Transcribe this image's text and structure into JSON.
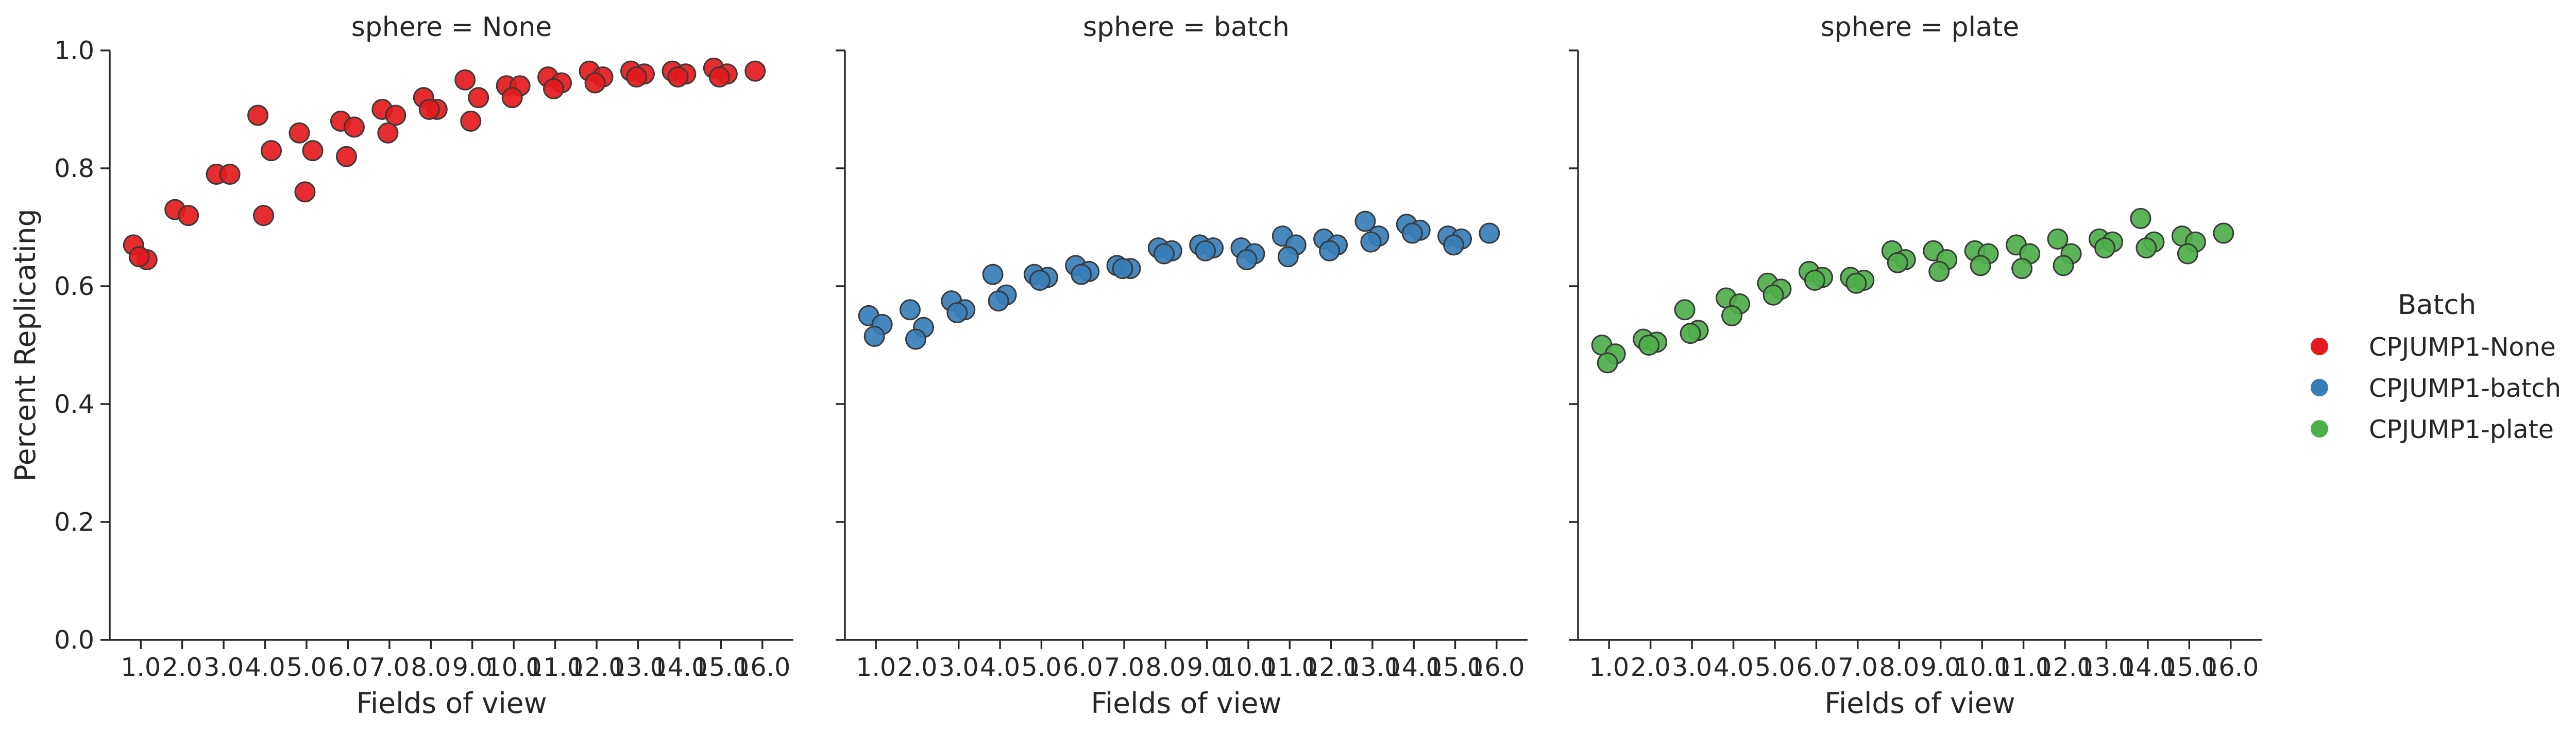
{
  "legend": {
    "title": "Batch",
    "entries": [
      {
        "label": "CPJUMP1-None",
        "color": "#e41a1c"
      },
      {
        "label": "CPJUMP1-batch",
        "color": "#377eb8"
      },
      {
        "label": "CPJUMP1-plate",
        "color": "#4daf4a"
      }
    ]
  },
  "chart_data": [
    {
      "type": "scatter",
      "title": "sphere = None",
      "xlabel": "Fields of view",
      "ylabel": "Percent Replicating",
      "ylim": [
        0,
        1.0
      ],
      "yticks": [
        "0.0",
        "0.2",
        "0.4",
        "0.6",
        "0.8",
        "1.0"
      ],
      "categories": [
        "1.0",
        "2.0",
        "3.0",
        "4.0",
        "5.0",
        "6.0",
        "7.0",
        "8.0",
        "9.0",
        "10.0",
        "11.0",
        "12.0",
        "13.0",
        "14.0",
        "15.0",
        "16.0"
      ],
      "series": [
        {
          "name": "CPJUMP1-None",
          "color": "#e41a1c",
          "points": [
            {
              "x": "1.0",
              "y": 0.67
            },
            {
              "x": "1.0",
              "y": 0.645
            },
            {
              "x": "1.0",
              "y": 0.65
            },
            {
              "x": "2.0",
              "y": 0.73
            },
            {
              "x": "2.0",
              "y": 0.72
            },
            {
              "x": "3.0",
              "y": 0.79
            },
            {
              "x": "3.0",
              "y": 0.79
            },
            {
              "x": "4.0",
              "y": 0.89
            },
            {
              "x": "4.0",
              "y": 0.83
            },
            {
              "x": "4.0",
              "y": 0.72
            },
            {
              "x": "5.0",
              "y": 0.86
            },
            {
              "x": "5.0",
              "y": 0.83
            },
            {
              "x": "5.0",
              "y": 0.76
            },
            {
              "x": "6.0",
              "y": 0.88
            },
            {
              "x": "6.0",
              "y": 0.87
            },
            {
              "x": "6.0",
              "y": 0.82
            },
            {
              "x": "7.0",
              "y": 0.9
            },
            {
              "x": "7.0",
              "y": 0.89
            },
            {
              "x": "7.0",
              "y": 0.86
            },
            {
              "x": "8.0",
              "y": 0.92
            },
            {
              "x": "8.0",
              "y": 0.9
            },
            {
              "x": "8.0",
              "y": 0.9
            },
            {
              "x": "9.0",
              "y": 0.95
            },
            {
              "x": "9.0",
              "y": 0.92
            },
            {
              "x": "9.0",
              "y": 0.88
            },
            {
              "x": "10.0",
              "y": 0.94
            },
            {
              "x": "10.0",
              "y": 0.94
            },
            {
              "x": "10.0",
              "y": 0.92
            },
            {
              "x": "11.0",
              "y": 0.955
            },
            {
              "x": "11.0",
              "y": 0.945
            },
            {
              "x": "11.0",
              "y": 0.935
            },
            {
              "x": "12.0",
              "y": 0.965
            },
            {
              "x": "12.0",
              "y": 0.955
            },
            {
              "x": "12.0",
              "y": 0.945
            },
            {
              "x": "13.0",
              "y": 0.965
            },
            {
              "x": "13.0",
              "y": 0.96
            },
            {
              "x": "13.0",
              "y": 0.955
            },
            {
              "x": "14.0",
              "y": 0.965
            },
            {
              "x": "14.0",
              "y": 0.96
            },
            {
              "x": "14.0",
              "y": 0.955
            },
            {
              "x": "15.0",
              "y": 0.97
            },
            {
              "x": "15.0",
              "y": 0.96
            },
            {
              "x": "15.0",
              "y": 0.955
            },
            {
              "x": "16.0",
              "y": 0.965
            }
          ]
        }
      ]
    },
    {
      "type": "scatter",
      "title": "sphere = batch",
      "xlabel": "Fields of view",
      "ylabel": "",
      "ylim": [
        0,
        1.0
      ],
      "categories": [
        "1.0",
        "2.0",
        "3.0",
        "4.0",
        "5.0",
        "6.0",
        "7.0",
        "8.0",
        "9.0",
        "10.0",
        "11.0",
        "12.0",
        "13.0",
        "14.0",
        "15.0",
        "16.0"
      ],
      "series": [
        {
          "name": "CPJUMP1-batch",
          "color": "#377eb8",
          "points": [
            {
              "x": "1.0",
              "y": 0.55
            },
            {
              "x": "1.0",
              "y": 0.535
            },
            {
              "x": "1.0",
              "y": 0.515
            },
            {
              "x": "2.0",
              "y": 0.56
            },
            {
              "x": "2.0",
              "y": 0.53
            },
            {
              "x": "2.0",
              "y": 0.51
            },
            {
              "x": "3.0",
              "y": 0.575
            },
            {
              "x": "3.0",
              "y": 0.56
            },
            {
              "x": "3.0",
              "y": 0.555
            },
            {
              "x": "4.0",
              "y": 0.62
            },
            {
              "x": "4.0",
              "y": 0.585
            },
            {
              "x": "4.0",
              "y": 0.575
            },
            {
              "x": "5.0",
              "y": 0.62
            },
            {
              "x": "5.0",
              "y": 0.615
            },
            {
              "x": "5.0",
              "y": 0.61
            },
            {
              "x": "6.0",
              "y": 0.635
            },
            {
              "x": "6.0",
              "y": 0.625
            },
            {
              "x": "6.0",
              "y": 0.62
            },
            {
              "x": "7.0",
              "y": 0.635
            },
            {
              "x": "7.0",
              "y": 0.63
            },
            {
              "x": "7.0",
              "y": 0.63
            },
            {
              "x": "8.0",
              "y": 0.665
            },
            {
              "x": "8.0",
              "y": 0.66
            },
            {
              "x": "8.0",
              "y": 0.655
            },
            {
              "x": "9.0",
              "y": 0.67
            },
            {
              "x": "9.0",
              "y": 0.665
            },
            {
              "x": "9.0",
              "y": 0.66
            },
            {
              "x": "10.0",
              "y": 0.665
            },
            {
              "x": "10.0",
              "y": 0.655
            },
            {
              "x": "10.0",
              "y": 0.645
            },
            {
              "x": "11.0",
              "y": 0.685
            },
            {
              "x": "11.0",
              "y": 0.67
            },
            {
              "x": "11.0",
              "y": 0.65
            },
            {
              "x": "12.0",
              "y": 0.68
            },
            {
              "x": "12.0",
              "y": 0.67
            },
            {
              "x": "12.0",
              "y": 0.66
            },
            {
              "x": "13.0",
              "y": 0.71
            },
            {
              "x": "13.0",
              "y": 0.685
            },
            {
              "x": "13.0",
              "y": 0.675
            },
            {
              "x": "14.0",
              "y": 0.705
            },
            {
              "x": "14.0",
              "y": 0.695
            },
            {
              "x": "14.0",
              "y": 0.69
            },
            {
              "x": "15.0",
              "y": 0.685
            },
            {
              "x": "15.0",
              "y": 0.68
            },
            {
              "x": "15.0",
              "y": 0.67
            },
            {
              "x": "16.0",
              "y": 0.69
            }
          ]
        }
      ]
    },
    {
      "type": "scatter",
      "title": "sphere = plate",
      "xlabel": "Fields of view",
      "ylabel": "",
      "ylim": [
        0,
        1.0
      ],
      "categories": [
        "1.0",
        "2.0",
        "3.0",
        "4.0",
        "5.0",
        "6.0",
        "7.0",
        "8.0",
        "9.0",
        "10.0",
        "11.0",
        "12.0",
        "13.0",
        "14.0",
        "15.0",
        "16.0"
      ],
      "series": [
        {
          "name": "CPJUMP1-plate",
          "color": "#4daf4a",
          "points": [
            {
              "x": "1.0",
              "y": 0.5
            },
            {
              "x": "1.0",
              "y": 0.485
            },
            {
              "x": "1.0",
              "y": 0.47
            },
            {
              "x": "2.0",
              "y": 0.51
            },
            {
              "x": "2.0",
              "y": 0.505
            },
            {
              "x": "2.0",
              "y": 0.5
            },
            {
              "x": "3.0",
              "y": 0.56
            },
            {
              "x": "3.0",
              "y": 0.525
            },
            {
              "x": "3.0",
              "y": 0.52
            },
            {
              "x": "4.0",
              "y": 0.58
            },
            {
              "x": "4.0",
              "y": 0.57
            },
            {
              "x": "4.0",
              "y": 0.55
            },
            {
              "x": "5.0",
              "y": 0.605
            },
            {
              "x": "5.0",
              "y": 0.595
            },
            {
              "x": "5.0",
              "y": 0.585
            },
            {
              "x": "6.0",
              "y": 0.625
            },
            {
              "x": "6.0",
              "y": 0.615
            },
            {
              "x": "6.0",
              "y": 0.61
            },
            {
              "x": "7.0",
              "y": 0.615
            },
            {
              "x": "7.0",
              "y": 0.61
            },
            {
              "x": "7.0",
              "y": 0.605
            },
            {
              "x": "8.0",
              "y": 0.66
            },
            {
              "x": "8.0",
              "y": 0.645
            },
            {
              "x": "8.0",
              "y": 0.64
            },
            {
              "x": "9.0",
              "y": 0.66
            },
            {
              "x": "9.0",
              "y": 0.645
            },
            {
              "x": "9.0",
              "y": 0.625
            },
            {
              "x": "10.0",
              "y": 0.66
            },
            {
              "x": "10.0",
              "y": 0.655
            },
            {
              "x": "10.0",
              "y": 0.635
            },
            {
              "x": "11.0",
              "y": 0.67
            },
            {
              "x": "11.0",
              "y": 0.655
            },
            {
              "x": "11.0",
              "y": 0.63
            },
            {
              "x": "12.0",
              "y": 0.68
            },
            {
              "x": "12.0",
              "y": 0.655
            },
            {
              "x": "12.0",
              "y": 0.635
            },
            {
              "x": "13.0",
              "y": 0.68
            },
            {
              "x": "13.0",
              "y": 0.675
            },
            {
              "x": "13.0",
              "y": 0.665
            },
            {
              "x": "14.0",
              "y": 0.715
            },
            {
              "x": "14.0",
              "y": 0.675
            },
            {
              "x": "14.0",
              "y": 0.665
            },
            {
              "x": "15.0",
              "y": 0.685
            },
            {
              "x": "15.0",
              "y": 0.675
            },
            {
              "x": "15.0",
              "y": 0.655
            },
            {
              "x": "16.0",
              "y": 0.69
            }
          ]
        }
      ]
    }
  ]
}
